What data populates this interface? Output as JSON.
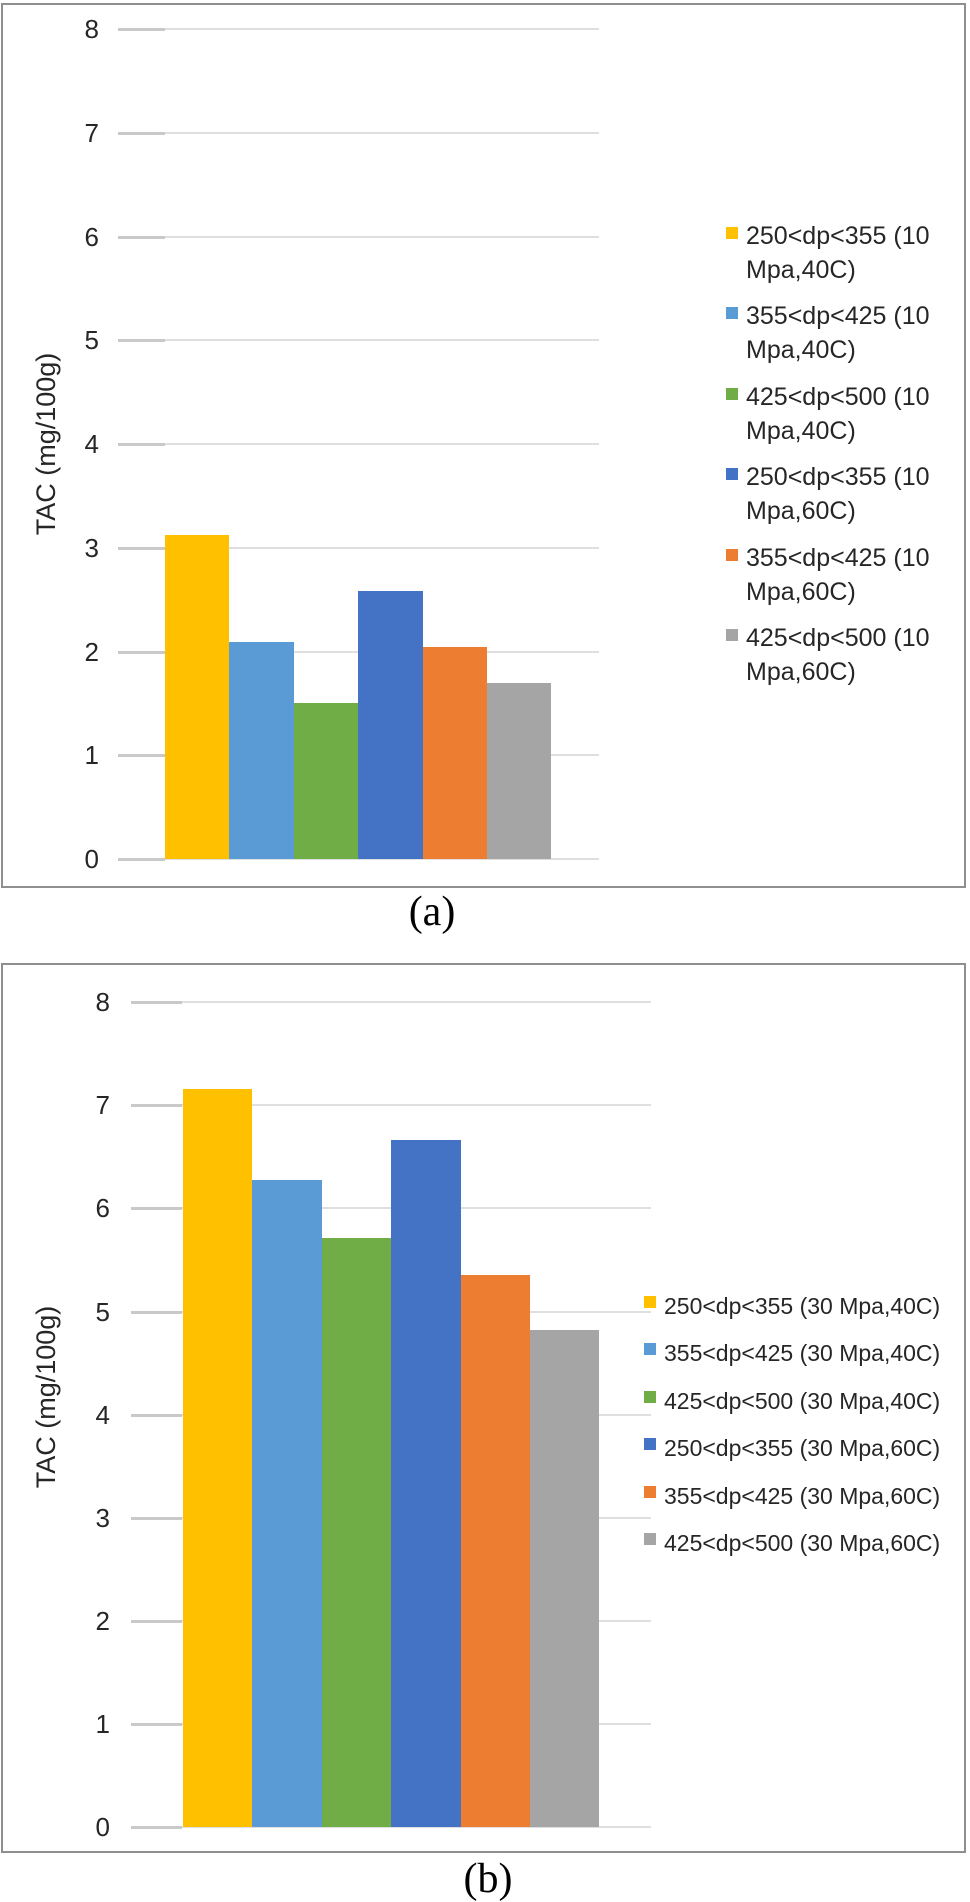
{
  "panel_labels": {
    "a": "(a)",
    "b": "(b)"
  },
  "shared": {
    "ylabel": "TAC (mg/100g)",
    "palette": [
      "#FFC000",
      "#5B9BD5",
      "#70AD47",
      "#4472C4",
      "#ED7D31",
      "#A5A5A5"
    ],
    "gridline_color": "#dfdfdf"
  },
  "chart_data": [
    {
      "id": "a",
      "type": "bar",
      "title": "",
      "xlabel": "",
      "ylabel": "TAC (mg/100g)",
      "ylim": [
        0,
        8
      ],
      "yticks": [
        0,
        1,
        2,
        3,
        4,
        5,
        6,
        7,
        8
      ],
      "grid": true,
      "legend_position": "right",
      "categories": [
        "250<dp<355 (10 Mpa,40C)",
        "355<dp<425 (10 Mpa,40C)",
        "425<dp<500 (10 Mpa,40C)",
        "250<dp<355 (10 Mpa,60C)",
        "355<dp<425 (10 Mpa,60C)",
        "425<dp<500 (10 Mpa,60C)"
      ],
      "values": [
        3.12,
        2.09,
        1.5,
        2.58,
        2.04,
        1.7
      ],
      "colors": [
        "#FFC000",
        "#5B9BD5",
        "#70AD47",
        "#4472C4",
        "#ED7D31",
        "#A5A5A5"
      ],
      "legend": [
        "250<dp<355 (10 Mpa,40C)",
        "355<dp<425 (10 Mpa,40C)",
        "425<dp<500 (10 Mpa,40C)",
        "250<dp<355 (10 Mpa,60C)",
        "355<dp<425 (10 Mpa,60C)",
        "425<dp<500 (10 Mpa,60C)"
      ]
    },
    {
      "id": "b",
      "type": "bar",
      "title": "",
      "xlabel": "",
      "ylabel": "TAC (mg/100g)",
      "ylim": [
        0,
        8
      ],
      "yticks": [
        0,
        1,
        2,
        3,
        4,
        5,
        6,
        7,
        8
      ],
      "grid": true,
      "legend_position": "right",
      "categories": [
        "250<dp<355 (30 Mpa,40C)",
        "355<dp<425 (30 Mpa,40C)",
        "425<dp<500 (30 Mpa,40C)",
        "250<dp<355 (30 Mpa,60C)",
        "355<dp<425 (30 Mpa,60C)",
        "425<dp<500 (30 Mpa,60C)"
      ],
      "values": [
        7.16,
        6.28,
        5.71,
        6.66,
        5.35,
        4.82
      ],
      "colors": [
        "#FFC000",
        "#5B9BD5",
        "#70AD47",
        "#4472C4",
        "#ED7D31",
        "#A5A5A5"
      ],
      "legend": [
        "250<dp<355 (30 Mpa,40C)",
        "355<dp<425 (30 Mpa,40C)",
        "425<dp<500 (30 Mpa,40C)",
        "250<dp<355 (30 Mpa,60C)",
        "355<dp<425 (30 Mpa,60C)",
        "425<dp<500 (30 Mpa,60C)"
      ]
    }
  ]
}
